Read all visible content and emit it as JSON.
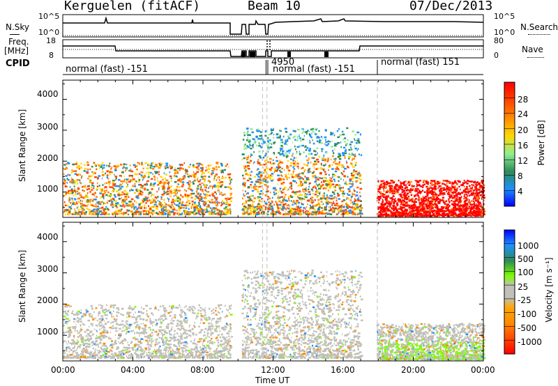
{
  "header": {
    "title": "Kerguelen (fitACF)",
    "beam": "Beam 10",
    "date": "07/Dec/2013"
  },
  "summary_panels": {
    "nsky_label": "N.Sky",
    "nsearch_label": "N.Search",
    "noise_ticks": [
      "10^5",
      "10^0"
    ],
    "freq_label_1": "Freq.",
    "freq_label_2": "[MHz]",
    "freq_ticks": [
      "18",
      "8"
    ],
    "nave_label": "Nave",
    "nave_ticks": [
      "80",
      "0"
    ],
    "cpid_label": "CPID",
    "cpid_segments": [
      {
        "text": "normal (fast) -151",
        "start_h": 0
      },
      {
        "text": "4950",
        "start_h": 11.6
      },
      {
        "text": "normal (fast) -151",
        "start_h": 11.7
      },
      {
        "text": "normal (fast) 151",
        "start_h": 17.95
      }
    ]
  },
  "x_axis": {
    "label": "Time UT",
    "ticks": [
      "00:00",
      "04:00",
      "08:00",
      "12:00",
      "16:00",
      "20:00",
      "00:00"
    ]
  },
  "chart_data": [
    {
      "type": "heatmap",
      "panel": "power",
      "ylabel": "Slant Range [km]",
      "y_ticks": [
        "4000",
        "3000",
        "2000",
        "1000"
      ],
      "xlim_hours": [
        0,
        24
      ],
      "ylim_km": [
        180,
        4620
      ],
      "colorbar_label": "Power [dB]",
      "colorbar_ticks": [
        "28",
        "24",
        "20",
        "16",
        "12",
        "8",
        "4"
      ],
      "colors": [
        "#0000ff",
        "#1e90ff",
        "#2e8b57",
        "#90ee90",
        "#ffd700",
        "#ff8c00",
        "#ff4500",
        "#ff0000"
      ],
      "echo_regions": [
        {
          "t0": 0,
          "t1": 9.6,
          "r0": 300,
          "r1": 2000,
          "dominant": "red/orange"
        },
        {
          "t0": 10.2,
          "t1": 17.0,
          "r0": 300,
          "r1": 3100,
          "dominant": "orange"
        },
        {
          "t0": 17.9,
          "t1": 24,
          "r0": 250,
          "r1": 1400,
          "dominant": "red"
        }
      ]
    },
    {
      "type": "heatmap",
      "panel": "velocity",
      "ylabel": "Slant Range [km]",
      "y_ticks": [
        "4000",
        "3000",
        "2000",
        "1000"
      ],
      "xlim_hours": [
        0,
        24
      ],
      "ylim_km": [
        180,
        4620
      ],
      "colorbar_label": "Velocity [m s⁻¹]",
      "colorbar_ticks": [
        "1000",
        "500",
        "100",
        "25",
        "-25",
        "-100",
        "-500",
        "-1000"
      ],
      "colors": [
        "#ff0000",
        "#ff4500",
        "#ff8c00",
        "#ffa500",
        "#c0c0b8",
        "#c0c0b8",
        "#7cfc00",
        "#2e8b57",
        "#1e90ff",
        "#0000ff"
      ],
      "echo_regions": [
        {
          "t0": 0,
          "t1": 9.6,
          "r0": 300,
          "r1": 2000,
          "dominant": "grey"
        },
        {
          "t0": 10.2,
          "t1": 17.0,
          "r0": 300,
          "r1": 3100,
          "dominant": "grey"
        },
        {
          "t0": 17.9,
          "t1": 24,
          "r0": 250,
          "r1": 1400,
          "dominant": "grey/green"
        }
      ]
    }
  ]
}
